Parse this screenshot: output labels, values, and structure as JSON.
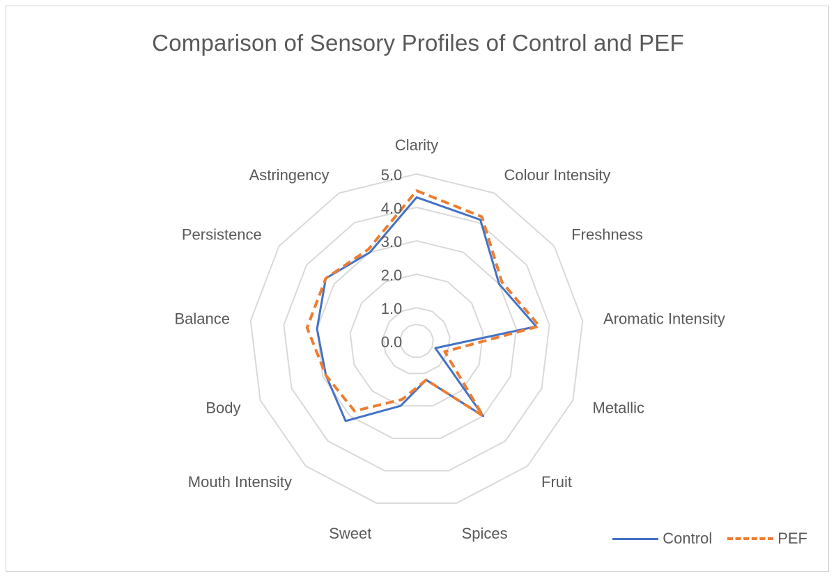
{
  "chart_data": {
    "type": "radar",
    "title": "Comparison of Sensory Profiles of Control and PEF",
    "categories": [
      "Clarity",
      "Colour Intensity",
      "Freshness",
      "Aromatic Intensity",
      "Metallic",
      "Fruit",
      "Spices",
      "Sweet",
      "Mouth Intensity",
      "Body",
      "Balance",
      "Persistence",
      "Astringency"
    ],
    "series": [
      {
        "name": "Control",
        "color": "#4472c4",
        "style": "solid",
        "values": [
          4.3,
          4.1,
          3.0,
          3.6,
          0.6,
          3.0,
          1.2,
          2.0,
          3.2,
          2.9,
          3.0,
          3.3,
          3.0
        ]
      },
      {
        "name": "PEF",
        "color": "#ed7d31",
        "style": "dashed",
        "values": [
          4.5,
          4.2,
          3.1,
          3.7,
          0.9,
          3.0,
          1.2,
          1.8,
          2.8,
          2.9,
          3.3,
          3.3,
          3.1
        ]
      }
    ],
    "rlim": [
      0,
      5
    ],
    "ticks": [
      "0.0",
      "1.0",
      "2.0",
      "3.0",
      "4.0",
      "5.0"
    ],
    "grid": true,
    "legend": "bottom-right"
  }
}
